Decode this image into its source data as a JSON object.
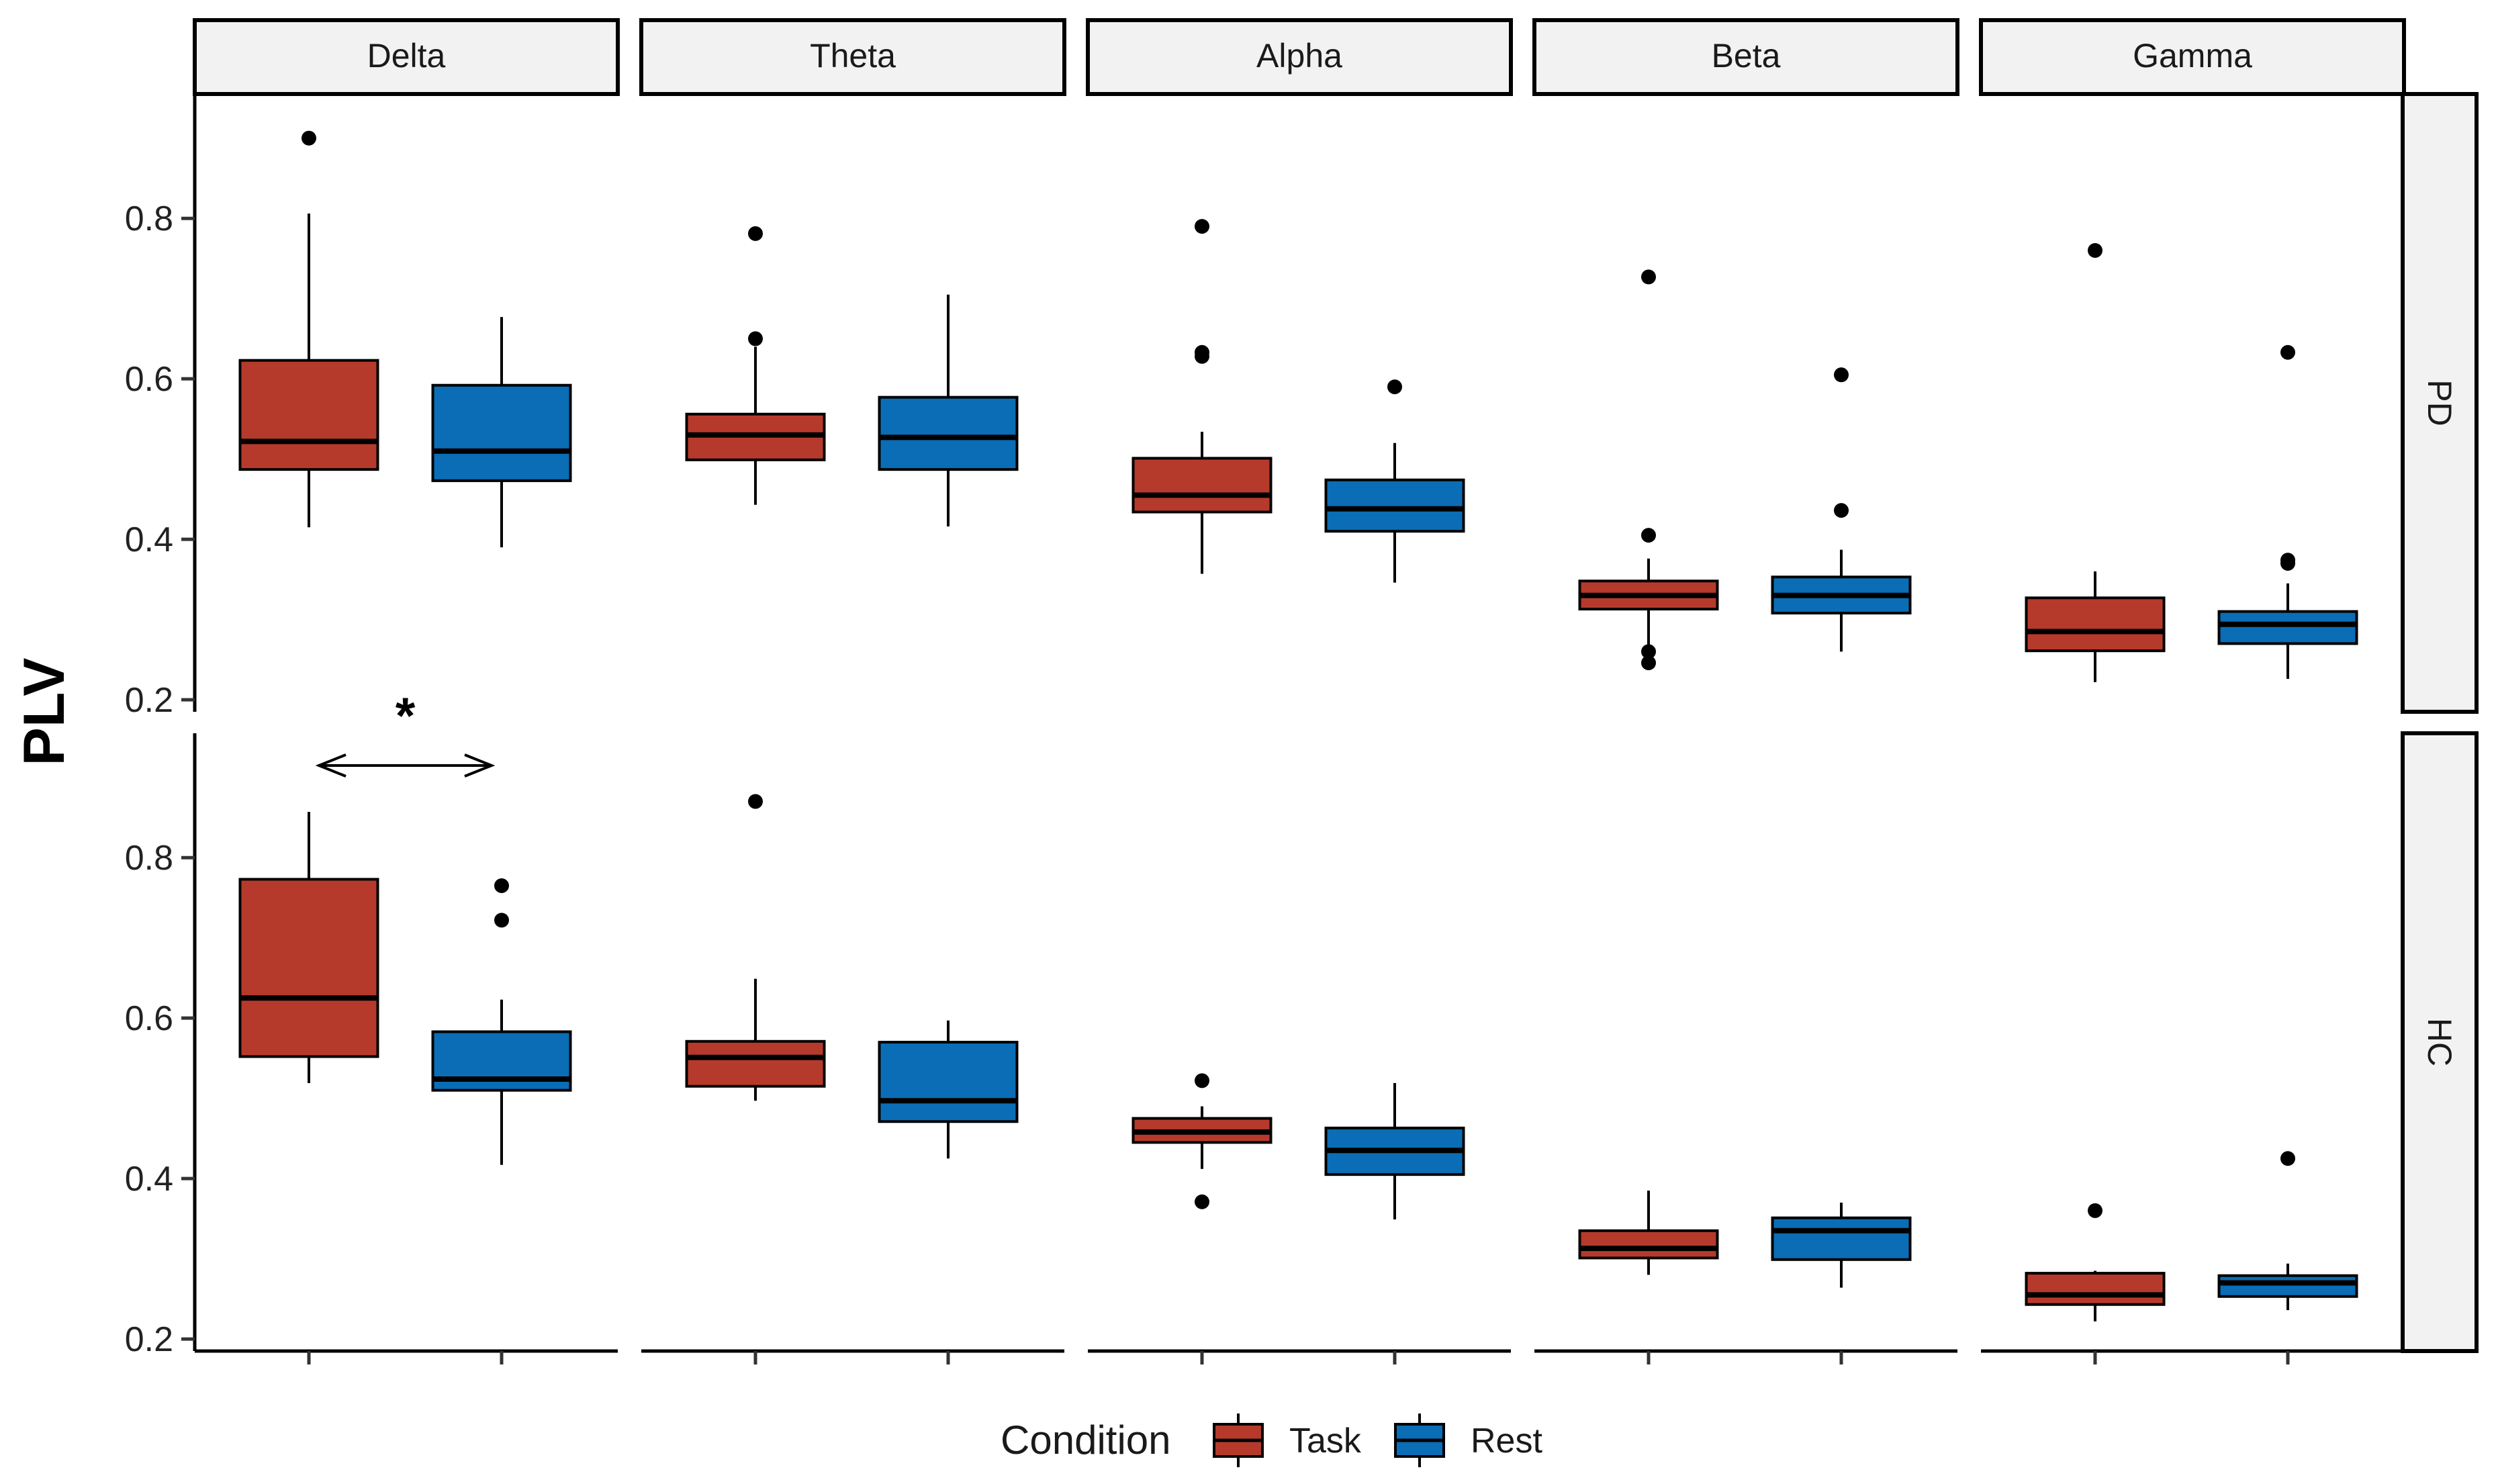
{
  "chart_data": {
    "type": "boxplot",
    "ylabel": "PLV",
    "xlabel": "",
    "columns": [
      "Delta",
      "Theta",
      "Alpha",
      "Beta",
      "Gamma"
    ],
    "rows": [
      "PD",
      "HC"
    ],
    "y_ticks": [
      0.2,
      0.4,
      0.6,
      0.8
    ],
    "y_ticks_labels": [
      "0.2",
      "0.4",
      "0.6",
      "0.8"
    ],
    "ylim": [
      0.185,
      0.955
    ],
    "legend": {
      "title": "Condition",
      "position": "bottom",
      "items": [
        {
          "label": "Task",
          "color": "#B63A2B"
        },
        {
          "label": "Rest",
          "color": "#0A6DB5"
        }
      ]
    },
    "annotation": {
      "text": "*",
      "panel_row": "HC",
      "panel_col": "Delta",
      "between": [
        "Task",
        "Rest"
      ]
    },
    "series_colors": {
      "Task": "#B63A2B",
      "Rest": "#0A6DB5"
    },
    "panels": [
      {
        "row": "PD",
        "col": "Delta",
        "boxes": [
          {
            "condition": "Task",
            "min": 0.415,
            "q1": 0.487,
            "median": 0.522,
            "q3": 0.623,
            "max": 0.806,
            "outliers": [
              0.9
            ]
          },
          {
            "condition": "Rest",
            "min": 0.39,
            "q1": 0.473,
            "median": 0.51,
            "q3": 0.592,
            "max": 0.677,
            "outliers": []
          }
        ]
      },
      {
        "row": "PD",
        "col": "Theta",
        "boxes": [
          {
            "condition": "Task",
            "min": 0.443,
            "q1": 0.499,
            "median": 0.53,
            "q3": 0.556,
            "max": 0.64,
            "outliers": [
              0.65,
              0.781
            ]
          },
          {
            "condition": "Rest",
            "min": 0.416,
            "q1": 0.487,
            "median": 0.527,
            "q3": 0.577,
            "max": 0.705,
            "outliers": []
          }
        ]
      },
      {
        "row": "PD",
        "col": "Alpha",
        "boxes": [
          {
            "condition": "Task",
            "min": 0.357,
            "q1": 0.434,
            "median": 0.455,
            "q3": 0.501,
            "max": 0.534,
            "outliers": [
              0.628,
              0.633,
              0.79
            ]
          },
          {
            "condition": "Rest",
            "min": 0.346,
            "q1": 0.41,
            "median": 0.438,
            "q3": 0.474,
            "max": 0.52,
            "outliers": [
              0.59
            ]
          }
        ]
      },
      {
        "row": "PD",
        "col": "Beta",
        "boxes": [
          {
            "condition": "Task",
            "min": 0.267,
            "q1": 0.313,
            "median": 0.33,
            "q3": 0.348,
            "max": 0.376,
            "outliers": [
              0.246,
              0.26,
              0.405,
              0.727
            ]
          },
          {
            "condition": "Rest",
            "min": 0.26,
            "q1": 0.308,
            "median": 0.33,
            "q3": 0.353,
            "max": 0.387,
            "outliers": [
              0.436,
              0.605
            ]
          }
        ]
      },
      {
        "row": "PD",
        "col": "Gamma",
        "boxes": [
          {
            "condition": "Task",
            "min": 0.222,
            "q1": 0.261,
            "median": 0.285,
            "q3": 0.327,
            "max": 0.36,
            "outliers": [
              0.76
            ]
          },
          {
            "condition": "Rest",
            "min": 0.226,
            "q1": 0.27,
            "median": 0.294,
            "q3": 0.31,
            "max": 0.345,
            "outliers": [
              0.37,
              0.374,
              0.633
            ]
          }
        ]
      },
      {
        "row": "HC",
        "col": "Delta",
        "boxes": [
          {
            "condition": "Task",
            "min": 0.519,
            "q1": 0.552,
            "median": 0.625,
            "q3": 0.773,
            "max": 0.857,
            "outliers": []
          },
          {
            "condition": "Rest",
            "min": 0.417,
            "q1": 0.51,
            "median": 0.524,
            "q3": 0.583,
            "max": 0.623,
            "outliers": [
              0.722,
              0.765
            ]
          }
        ]
      },
      {
        "row": "HC",
        "col": "Theta",
        "boxes": [
          {
            "condition": "Task",
            "min": 0.497,
            "q1": 0.515,
            "median": 0.551,
            "q3": 0.571,
            "max": 0.649,
            "outliers": [
              0.87
            ]
          },
          {
            "condition": "Rest",
            "min": 0.425,
            "q1": 0.471,
            "median": 0.497,
            "q3": 0.57,
            "max": 0.597,
            "outliers": []
          }
        ]
      },
      {
        "row": "HC",
        "col": "Alpha",
        "boxes": [
          {
            "condition": "Task",
            "min": 0.412,
            "q1": 0.445,
            "median": 0.458,
            "q3": 0.475,
            "max": 0.49,
            "outliers": [
              0.371,
              0.522
            ]
          },
          {
            "condition": "Rest",
            "min": 0.349,
            "q1": 0.405,
            "median": 0.435,
            "q3": 0.463,
            "max": 0.519,
            "outliers": []
          }
        ]
      },
      {
        "row": "HC",
        "col": "Beta",
        "boxes": [
          {
            "condition": "Task",
            "min": 0.28,
            "q1": 0.301,
            "median": 0.313,
            "q3": 0.335,
            "max": 0.385,
            "outliers": []
          },
          {
            "condition": "Rest",
            "min": 0.264,
            "q1": 0.299,
            "median": 0.335,
            "q3": 0.351,
            "max": 0.37,
            "outliers": []
          }
        ]
      },
      {
        "row": "HC",
        "col": "Gamma",
        "boxes": [
          {
            "condition": "Task",
            "min": 0.222,
            "q1": 0.243,
            "median": 0.255,
            "q3": 0.282,
            "max": 0.285,
            "outliers": [
              0.36
            ]
          },
          {
            "condition": "Rest",
            "min": 0.236,
            "q1": 0.253,
            "median": 0.27,
            "q3": 0.279,
            "max": 0.294,
            "outliers": [
              0.425
            ]
          }
        ]
      }
    ]
  }
}
